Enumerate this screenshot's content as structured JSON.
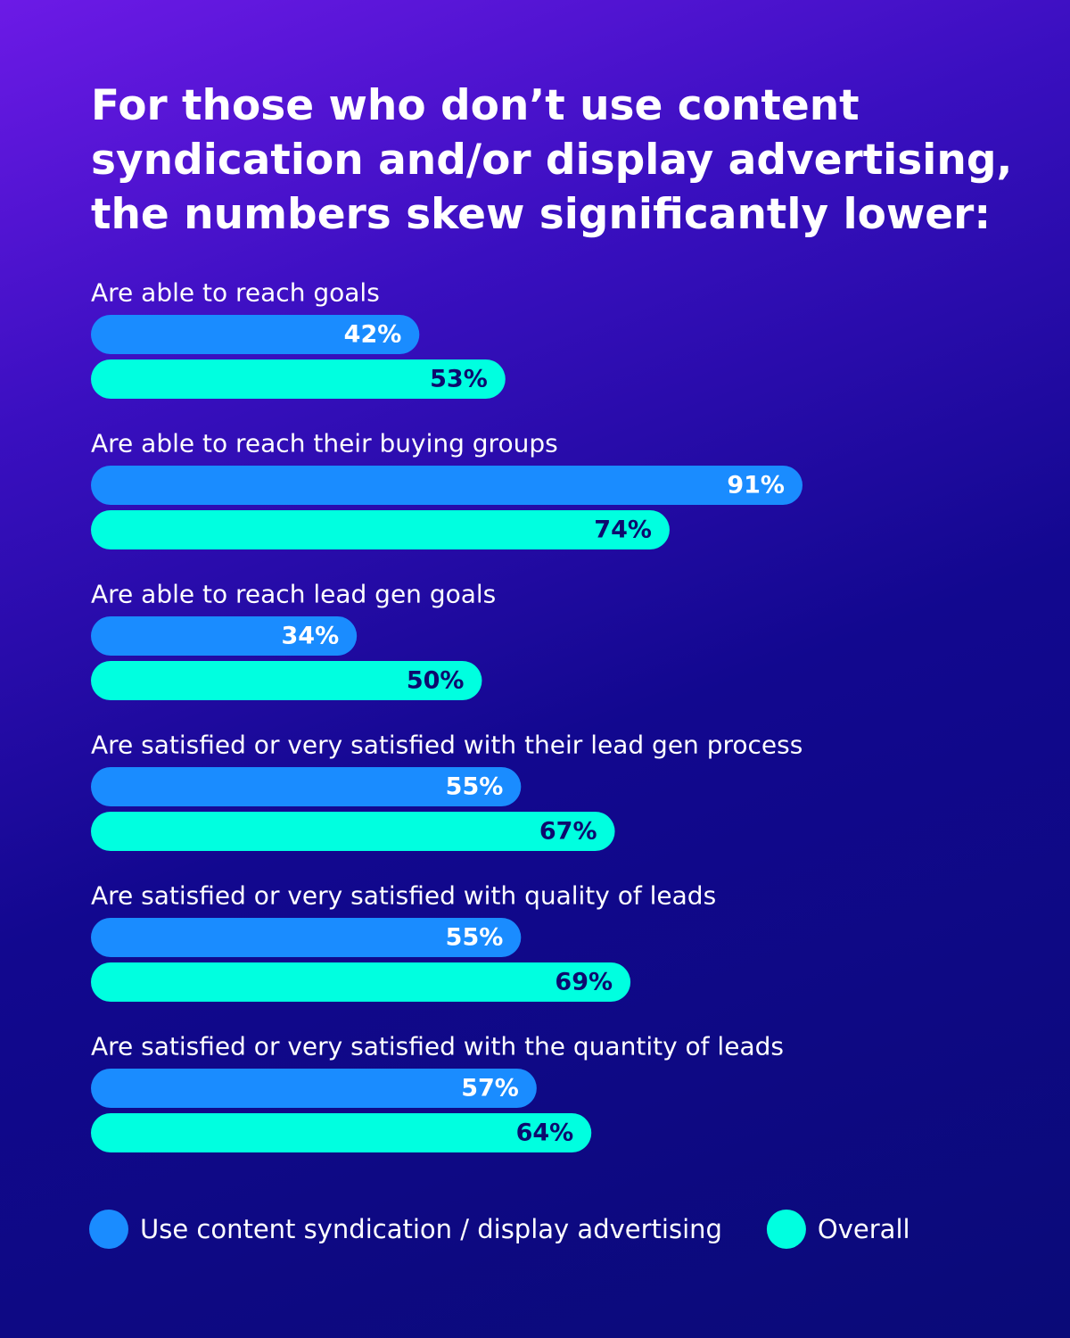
{
  "chart_data": {
    "type": "bar",
    "orientation": "horizontal",
    "title": "For those who don’t use content syndication and/or display advertising, the numbers skew significantly lower:",
    "categories": [
      "Are able to reach goals",
      "Are able to reach their buying groups",
      "Are able to reach lead gen goals",
      "Are satisfied or very satisfied with their lead gen process",
      "Are satisfied or very satisfied with quality of leads",
      "Are satisfied or very satisfied with the quantity of leads"
    ],
    "series": [
      {
        "name": "Use content syndication / display advertising",
        "color": "#1a8cff",
        "values": [
          42,
          91,
          34,
          55,
          55,
          57
        ],
        "value_labels": [
          "42%",
          "91%",
          "34%",
          "55%",
          "55%",
          "57%"
        ]
      },
      {
        "name": "Overall",
        "color": "#00ffe0",
        "values": [
          53,
          74,
          50,
          67,
          69,
          64
        ],
        "value_labels": [
          "53%",
          "74%",
          "50%",
          "67%",
          "69%",
          "64%"
        ]
      }
    ]
  }
}
